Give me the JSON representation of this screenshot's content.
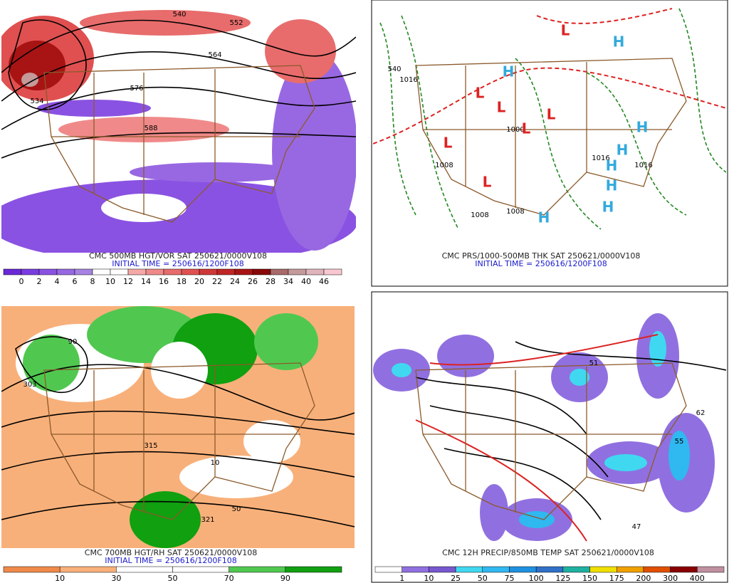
{
  "panels": [
    {
      "caption": "CMC 500MB HGT/VOR SAT 250621/0000V108",
      "initial_time": "INITIAL TIME = 250616/1200F108",
      "colorbar": {
        "labels": [
          0,
          2,
          4,
          6,
          8,
          10,
          12,
          14,
          16,
          18,
          20,
          22,
          24,
          26,
          28,
          34,
          40,
          46
        ],
        "colors": [
          "#6a28d8",
          "#7a3ce0",
          "#8a52e2",
          "#9868e2",
          "#a682e2",
          "#ffffff",
          "#ffffff",
          "#f6a8a8",
          "#f08a8a",
          "#e86c6c",
          "#e05050",
          "#d03838",
          "#c02424",
          "#a81414",
          "#880808",
          "#a86a6a",
          "#c49a9a",
          "#e0b4bc",
          "#f8c8d0"
        ]
      },
      "contour_labels": [
        "552",
        "540",
        "564",
        "576",
        "588",
        "534"
      ]
    },
    {
      "caption": "CMC PRS/1000-500MB THK SAT 250621/0000V108",
      "initial_time": "INITIAL TIME = 250616/1200F108",
      "centers": [
        "L",
        "L",
        "L",
        "L",
        "L",
        "L",
        "L",
        "H",
        "H",
        "H",
        "H",
        "H",
        "H",
        "H",
        "H"
      ],
      "contour_labels": [
        "1016",
        "1000",
        "1008",
        "1008",
        "1016",
        "1016",
        "540",
        "1008"
      ]
    },
    {
      "caption": "CMC 700MB HGT/RH SAT 250621/0000V108",
      "initial_time": "INITIAL TIME = 250616/1200F108",
      "colorbar": {
        "labels": [
          10,
          30,
          50,
          70,
          90
        ],
        "colors": [
          "#f08a4a",
          "#f8b07a",
          "#ffffff",
          "#ffffff",
          "#50c850",
          "#10a010"
        ]
      },
      "contour_labels": [
        "303",
        "315",
        "321",
        "50",
        "90",
        "10"
      ]
    },
    {
      "caption": "CMC 12H PRECIP/850MB TEMP SAT 250621/0000V108",
      "colorbar": {
        "labels": [
          1,
          10,
          25,
          50,
          75,
          100,
          125,
          150,
          175,
          200,
          300,
          400
        ],
        "colors": [
          "#ffffff",
          "#9070e0",
          "#7858d0",
          "#40d8f0",
          "#30b8f0",
          "#2090e0",
          "#3070c8",
          "#20b0a0",
          "#f0e000",
          "#f0a000",
          "#e05000",
          "#880000",
          "#c090a0"
        ]
      },
      "contour_labels": [
        "51",
        "47",
        "62",
        "55"
      ]
    }
  ]
}
